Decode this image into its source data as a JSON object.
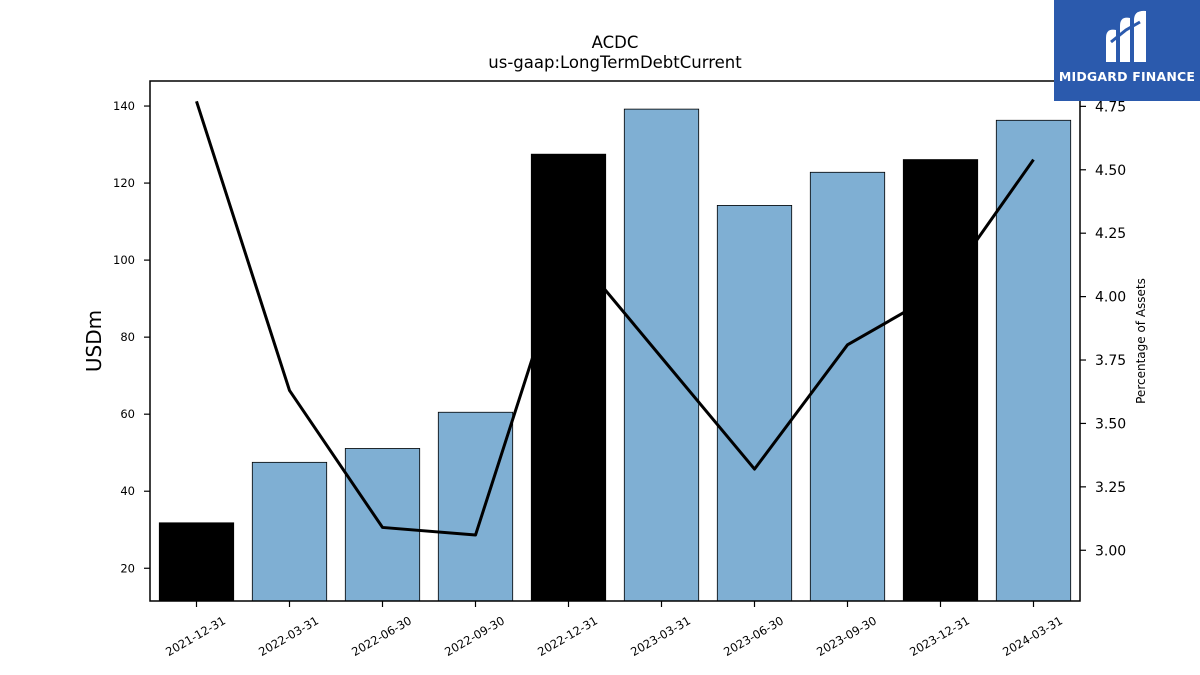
{
  "chart_data": {
    "type": "bar",
    "title": "ACDC",
    "subtitle": "us-gaap:LongTermDebtCurrent",
    "ylabel": "USDm",
    "y2label": "Percentage of Assets",
    "categories": [
      "2021-12-31",
      "2022-03-31",
      "2022-06-30",
      "2022-09-30",
      "2022-12-31",
      "2023-03-31",
      "2023-06-30",
      "2023-09-30",
      "2023-12-31",
      "2024-03-31"
    ],
    "values": [
      31.8,
      47.5,
      51.1,
      60.5,
      127.5,
      139.2,
      114.2,
      122.8,
      126.1,
      136.3
    ],
    "bar_colors": [
      "#000000",
      "#7fafd3",
      "#7fafd3",
      "#7fafd3",
      "#000000",
      "#7fafd3",
      "#7fafd3",
      "#7fafd3",
      "#000000",
      "#7fafd3"
    ],
    "line": {
      "axis": "right",
      "color": "#000000",
      "values": [
        4.77,
        3.63,
        3.09,
        3.06,
        4.2,
        3.76,
        3.32,
        3.81,
        4.02,
        4.54
      ]
    },
    "ylim": [
      11.5,
      146.5
    ],
    "y2lim": [
      2.8,
      4.85
    ],
    "yticks": [
      20,
      40,
      60,
      80,
      100,
      120,
      140
    ],
    "y2ticks": [
      "3.00",
      "3.25",
      "3.50",
      "3.75",
      "4.00",
      "4.25",
      "4.50",
      "4.75"
    ],
    "grid": false,
    "legend": "none"
  },
  "logo": {
    "text": "MIDGARD FINANCE",
    "background": "#2b5aad"
  }
}
